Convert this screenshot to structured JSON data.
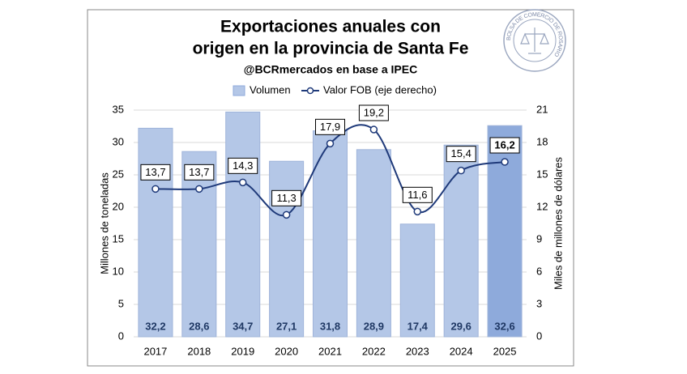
{
  "chart_data": {
    "type": "bar_line",
    "title": [
      "Exportaciones anuales con",
      "origen en la provincia de Santa Fe"
    ],
    "subtitle": "@BCRmercados en base a IPEC",
    "logo_text": "BOLSA DE COMERCIO DE ROSARIO",
    "y_label": "Millones de toneladas",
    "y2_label": "Miles de millones de dólares",
    "categories": [
      "2017",
      "2018",
      "2019",
      "2020",
      "2021",
      "2022",
      "2023",
      "2024",
      "2025"
    ],
    "series": [
      {
        "name": "Volumen",
        "color": "#b4c7e7",
        "colors": [
          "#b4c7e7",
          "#b4c7e7",
          "#b4c7e7",
          "#b4c7e7",
          "#b4c7e7",
          "#b4c7e7",
          "#b4c7e7",
          "#b4c7e7",
          "#8eaadb"
        ],
        "values": [
          32.2,
          28.6,
          34.7,
          27.1,
          31.8,
          28.9,
          17.4,
          29.6,
          32.6
        ],
        "value_labels": [
          "32,2",
          "28,6",
          "34,7",
          "27,1",
          "31,8",
          "28,9",
          "17,4",
          "29,6",
          "32,6"
        ]
      },
      {
        "name": "Valor FOB (eje derecho)",
        "color": "#1f3a7a",
        "axis": "y2",
        "values": [
          13.7,
          13.7,
          14.3,
          11.3,
          17.9,
          19.2,
          11.6,
          15.4,
          16.2
        ],
        "value_labels": [
          "13,7",
          "13,7",
          "14,3",
          "11,3",
          "17,9",
          "19,2",
          "11,6",
          "15,4",
          "16,2"
        ]
      }
    ],
    "ylim": [
      0,
      35
    ],
    "yticks": [
      0,
      5,
      10,
      15,
      20,
      25,
      30,
      35
    ],
    "y2lim": [
      0,
      21
    ],
    "y2ticks": [
      0,
      3,
      6,
      9,
      12,
      15,
      18,
      21
    ],
    "grid": true
  }
}
